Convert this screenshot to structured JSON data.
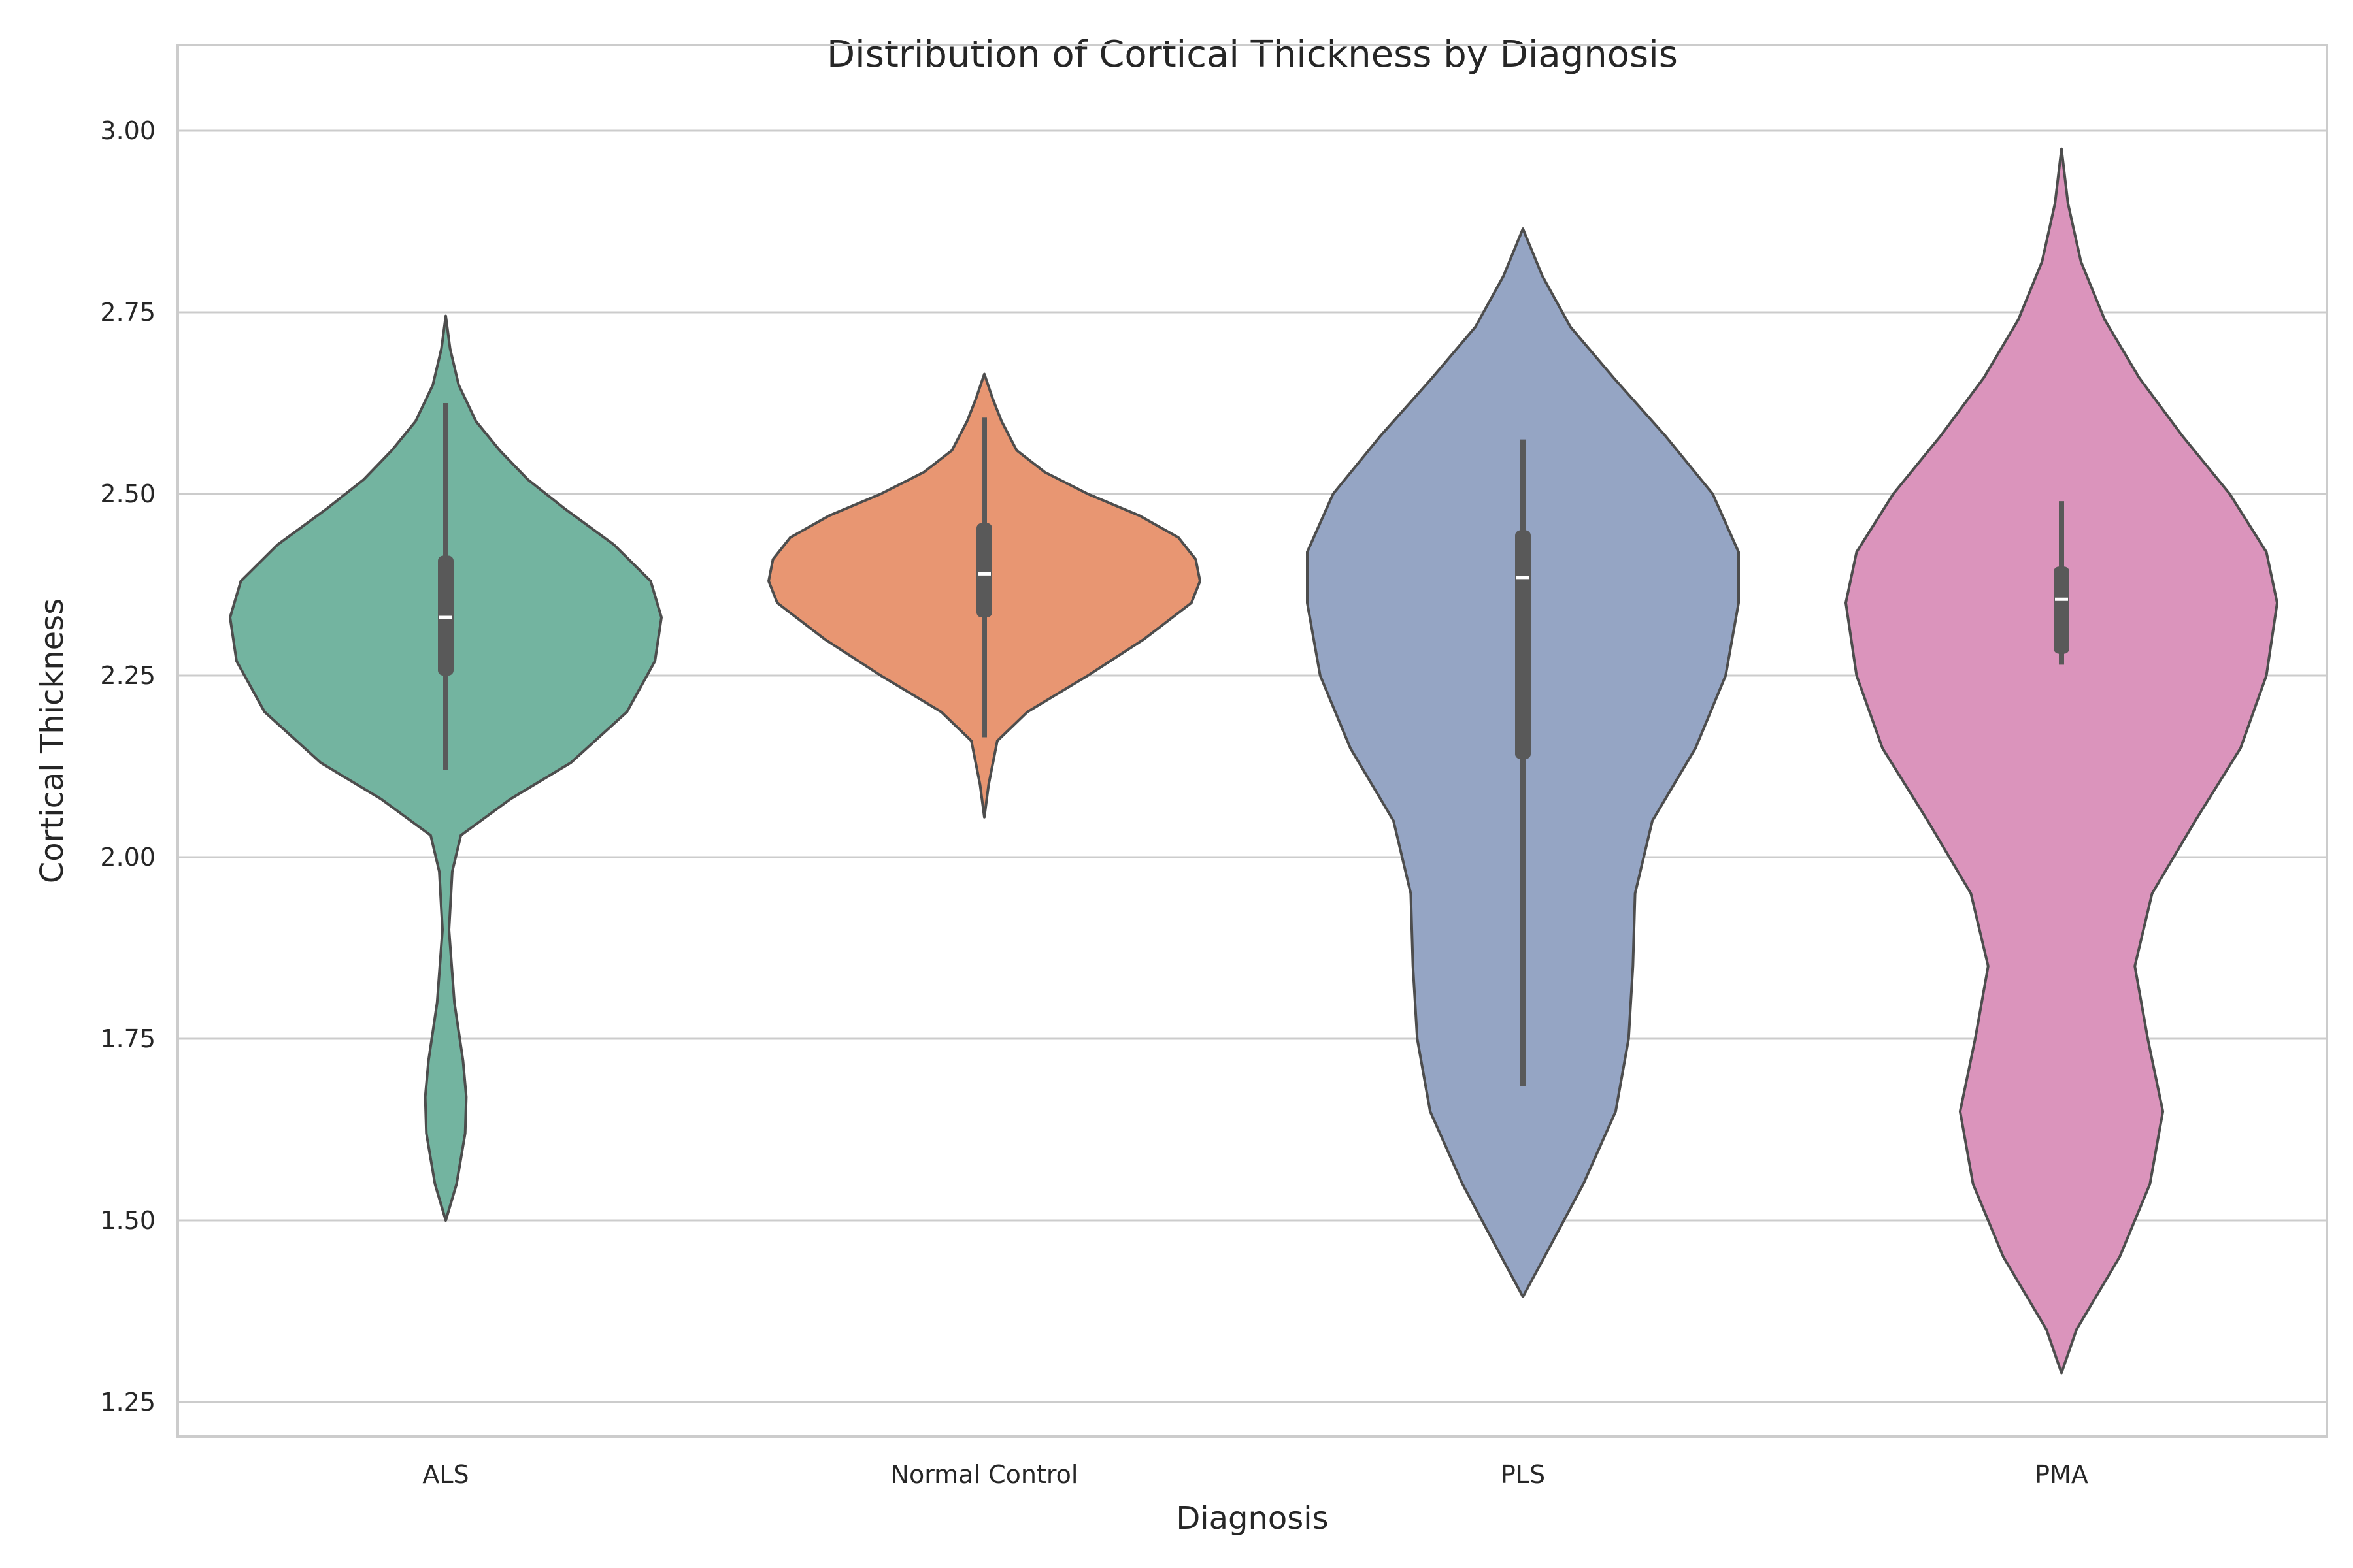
{
  "chart_data": {
    "type": "violin",
    "title": "Distribution of Cortical Thickness by Diagnosis",
    "xlabel": "Diagnosis",
    "ylabel": "Cortical Thickness",
    "ylim": [
      1.2,
      3.06
    ],
    "yticks": [
      "1.25",
      "1.50",
      "1.75",
      "2.00",
      "2.25",
      "2.50",
      "2.75",
      "3.00"
    ],
    "grid": true,
    "categories": [
      "ALS",
      "Normal Control",
      "PLS",
      "PMA"
    ],
    "series": [
      {
        "category": "ALS",
        "color": "#73b4a0",
        "extent": [
          1.5,
          2.745
        ],
        "q1": 2.25,
        "median": 2.33,
        "q3": 2.415,
        "whisker_low": 2.12,
        "whisker_high": 2.625,
        "profile": [
          [
            1.5,
            0.0
          ],
          [
            1.55,
            0.05
          ],
          [
            1.62,
            0.09
          ],
          [
            1.67,
            0.095
          ],
          [
            1.72,
            0.08
          ],
          [
            1.8,
            0.04
          ],
          [
            1.9,
            0.015
          ],
          [
            1.98,
            0.03
          ],
          [
            2.03,
            0.07
          ],
          [
            2.08,
            0.3
          ],
          [
            2.13,
            0.58
          ],
          [
            2.2,
            0.84
          ],
          [
            2.27,
            0.97
          ],
          [
            2.33,
            1.0
          ],
          [
            2.38,
            0.95
          ],
          [
            2.43,
            0.78
          ],
          [
            2.48,
            0.55
          ],
          [
            2.52,
            0.38
          ],
          [
            2.56,
            0.25
          ],
          [
            2.6,
            0.14
          ],
          [
            2.65,
            0.06
          ],
          [
            2.7,
            0.02
          ],
          [
            2.745,
            0.0
          ]
        ]
      },
      {
        "category": "Normal Control",
        "color": "#e89672",
        "extent": [
          2.055,
          2.665
        ],
        "q1": 2.33,
        "median": 2.39,
        "q3": 2.46,
        "whisker_low": 2.165,
        "whisker_high": 2.605,
        "profile": [
          [
            2.055,
            0.0
          ],
          [
            2.1,
            0.02
          ],
          [
            2.16,
            0.06
          ],
          [
            2.2,
            0.2
          ],
          [
            2.25,
            0.48
          ],
          [
            2.3,
            0.74
          ],
          [
            2.35,
            0.96
          ],
          [
            2.38,
            1.0
          ],
          [
            2.41,
            0.98
          ],
          [
            2.44,
            0.9
          ],
          [
            2.47,
            0.72
          ],
          [
            2.5,
            0.48
          ],
          [
            2.53,
            0.28
          ],
          [
            2.56,
            0.15
          ],
          [
            2.6,
            0.08
          ],
          [
            2.63,
            0.04
          ],
          [
            2.665,
            0.0
          ]
        ]
      },
      {
        "category": "PLS",
        "color": "#95a5c4",
        "extent": [
          1.395,
          2.865
        ],
        "q1": 2.135,
        "median": 2.385,
        "q3": 2.45,
        "whisker_low": 1.685,
        "whisker_high": 2.575,
        "profile": [
          [
            1.395,
            0.0
          ],
          [
            1.45,
            0.1
          ],
          [
            1.55,
            0.28
          ],
          [
            1.65,
            0.43
          ],
          [
            1.75,
            0.49
          ],
          [
            1.85,
            0.51
          ],
          [
            1.95,
            0.52
          ],
          [
            2.05,
            0.6
          ],
          [
            2.15,
            0.8
          ],
          [
            2.25,
            0.94
          ],
          [
            2.35,
            1.0
          ],
          [
            2.42,
            1.0
          ],
          [
            2.5,
            0.88
          ],
          [
            2.58,
            0.66
          ],
          [
            2.66,
            0.42
          ],
          [
            2.73,
            0.22
          ],
          [
            2.8,
            0.09
          ],
          [
            2.865,
            0.0
          ]
        ]
      },
      {
        "category": "PMA",
        "color": "#db94bc",
        "extent": [
          1.29,
          2.975
        ],
        "q1": 2.28,
        "median": 2.355,
        "q3": 2.4,
        "whisker_low": 2.265,
        "whisker_high": 2.49,
        "profile": [
          [
            1.29,
            0.0
          ],
          [
            1.35,
            0.07
          ],
          [
            1.45,
            0.27
          ],
          [
            1.55,
            0.41
          ],
          [
            1.65,
            0.47
          ],
          [
            1.75,
            0.4
          ],
          [
            1.85,
            0.34
          ],
          [
            1.95,
            0.42
          ],
          [
            2.05,
            0.62
          ],
          [
            2.15,
            0.83
          ],
          [
            2.25,
            0.95
          ],
          [
            2.35,
            1.0
          ],
          [
            2.42,
            0.95
          ],
          [
            2.5,
            0.78
          ],
          [
            2.58,
            0.56
          ],
          [
            2.66,
            0.36
          ],
          [
            2.74,
            0.2
          ],
          [
            2.82,
            0.09
          ],
          [
            2.9,
            0.03
          ],
          [
            2.975,
            0.0
          ]
        ]
      }
    ]
  }
}
